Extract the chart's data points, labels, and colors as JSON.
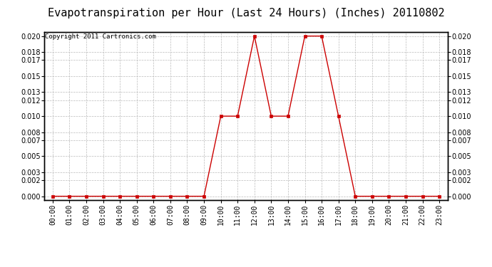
{
  "title": "Evapotranspiration per Hour (Last 24 Hours) (Inches) 20110802",
  "copyright_text": "Copyright 2011 Cartronics.com",
  "hours": [
    "00:00",
    "01:00",
    "02:00",
    "03:00",
    "04:00",
    "05:00",
    "06:00",
    "07:00",
    "08:00",
    "09:00",
    "10:00",
    "11:00",
    "12:00",
    "13:00",
    "14:00",
    "15:00",
    "16:00",
    "17:00",
    "18:00",
    "19:00",
    "20:00",
    "21:00",
    "22:00",
    "23:00"
  ],
  "values": [
    0.0,
    0.0,
    0.0,
    0.0,
    0.0,
    0.0,
    0.0,
    0.0,
    0.0,
    0.0,
    0.01,
    0.01,
    0.02,
    0.01,
    0.01,
    0.02,
    0.02,
    0.01,
    0.0,
    0.0,
    0.0,
    0.0,
    0.0,
    0.0
  ],
  "line_color": "#cc0000",
  "marker": "s",
  "marker_size": 2.5,
  "marker_linewidth": 0.5,
  "line_width": 1.0,
  "background_color": "#ffffff",
  "plot_bg_color": "#ffffff",
  "grid_color": "#bbbbbb",
  "yticks": [
    0.0,
    0.002,
    0.003,
    0.005,
    0.007,
    0.008,
    0.01,
    0.012,
    0.013,
    0.015,
    0.017,
    0.018,
    0.02
  ],
  "ylim": [
    -0.0005,
    0.0205
  ],
  "title_fontsize": 11,
  "copyright_fontsize": 6.5,
  "tick_fontsize": 7,
  "border_color": "#000000"
}
